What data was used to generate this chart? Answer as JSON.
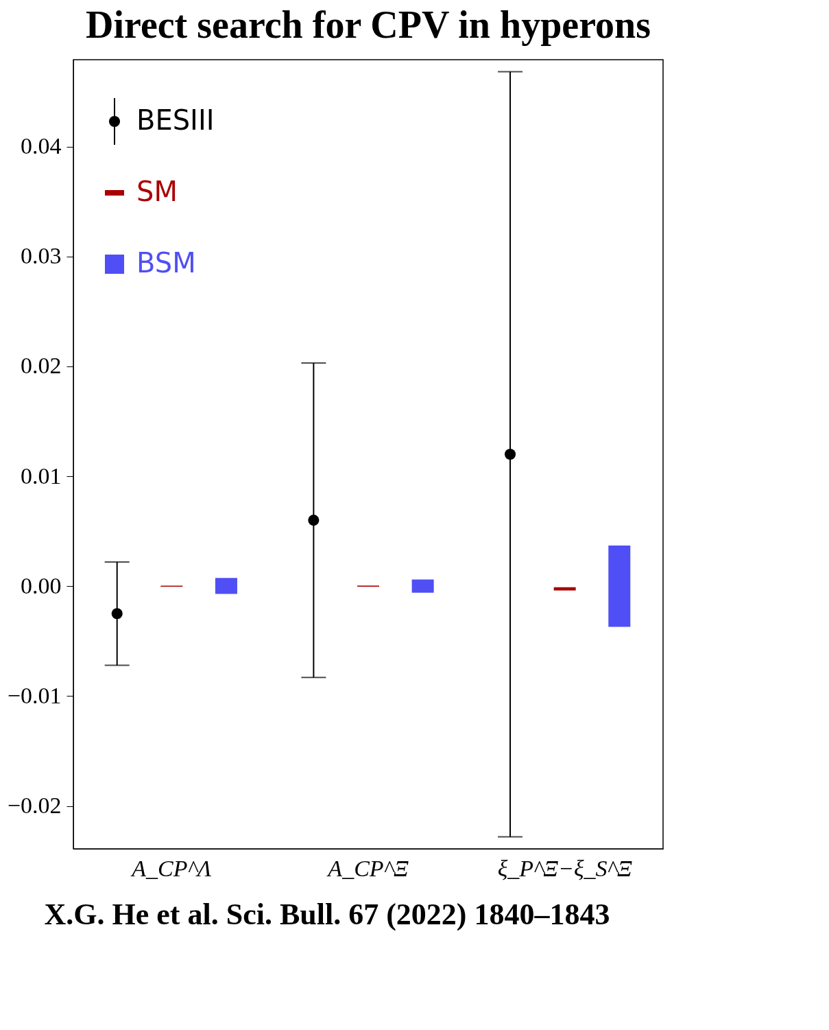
{
  "chart_data": {
    "type": "scatter",
    "title": "Direct search for CPV in hyperons",
    "categories": [
      "A_CP^Λ",
      "A_CP^Ξ",
      "ξ_P^Ξ−ξ_S^Ξ"
    ],
    "series": [
      {
        "name": "BESIII",
        "color": "#000000",
        "values": [
          -0.0025,
          0.006,
          0.012
        ],
        "errors": [
          [
            -0.0072,
            0.0022
          ],
          [
            -0.0083,
            0.0203
          ],
          [
            -0.0228,
            0.0468
          ]
        ]
      },
      {
        "name": "SM",
        "type": "bar",
        "color": "#aa0000",
        "base": [
          -5e-05,
          -5e-05,
          -0.0004
        ],
        "values": [
          0.0001,
          0.0001,
          0.0003
        ]
      },
      {
        "name": "BSM",
        "type": "bar",
        "color": "#4f4ff5",
        "base": [
          -0.0007,
          -0.0006,
          -0.0037
        ],
        "values": [
          0.00145,
          0.0012,
          0.0074
        ]
      }
    ],
    "ylim": [
      -0.0239,
      0.0479
    ],
    "yticks": [
      {
        "value": -0.02,
        "label": "−0.02"
      },
      {
        "value": -0.01,
        "label": "−0.01"
      },
      {
        "value": 0,
        "label": "0.00"
      },
      {
        "value": 0.01,
        "label": "0.01"
      },
      {
        "value": 0.02,
        "label": "0.02"
      },
      {
        "value": 0.03,
        "label": "0.03"
      },
      {
        "value": 0.04,
        "label": "0.04"
      }
    ],
    "grid": false,
    "legend": "top left",
    "marker": "circle",
    "annotations": [
      "X.G. He et al. Sci. Bull. 67 (2022) 1840–1843"
    ]
  }
}
